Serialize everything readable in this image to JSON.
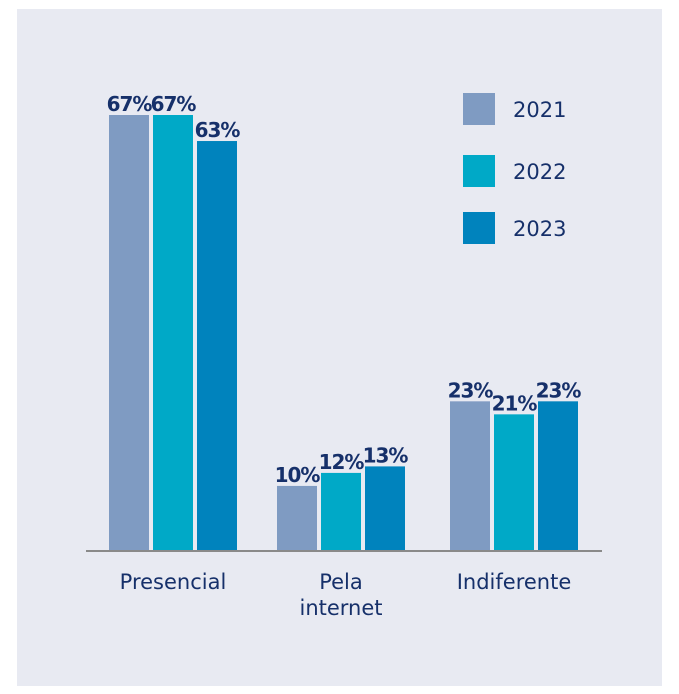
{
  "chart_data": {
    "type": "bar",
    "categories": [
      "Presencial",
      "Pela internet",
      "Indiferente"
    ],
    "category_lines": [
      [
        "Presencial"
      ],
      [
        "Pela",
        "internet"
      ],
      [
        "Indiferente"
      ]
    ],
    "series": [
      {
        "name": "2021",
        "values": [
          67,
          10,
          23
        ],
        "labels": [
          "67%",
          "10%",
          "23%"
        ],
        "color": "#7f9bc2"
      },
      {
        "name": "2022",
        "values": [
          67,
          12,
          21
        ],
        "labels": [
          "67%",
          "12%",
          "21%"
        ],
        "color": "#00a9c7"
      },
      {
        "name": "2023",
        "values": [
          63,
          13,
          23
        ],
        "labels": [
          "63%",
          "13%",
          "23%"
        ],
        "color": "#0083bd"
      }
    ],
    "ylim": [
      0,
      67
    ],
    "grid": false,
    "legend_position": "top-right",
    "colors": {
      "background": "#e8eaf2",
      "text": "#16306a",
      "axis": "#8a8a8a"
    }
  }
}
